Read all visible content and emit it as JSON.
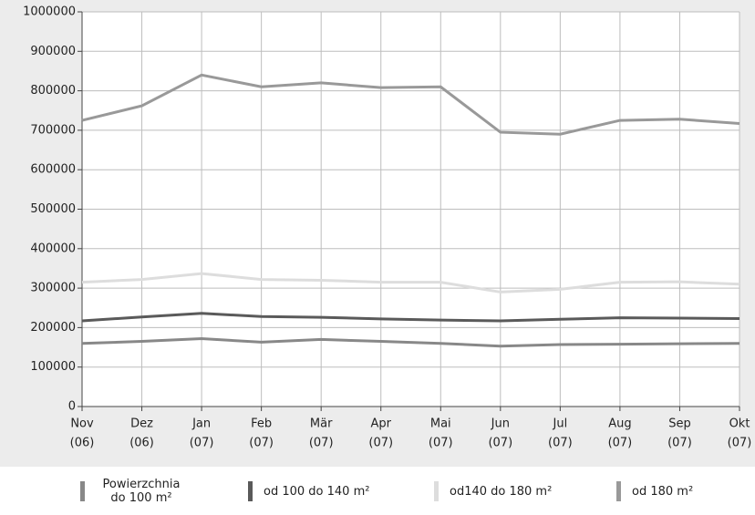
{
  "chart_data": {
    "type": "line",
    "categories": [
      [
        "Nov",
        "(06)"
      ],
      [
        "Dez",
        "(06)"
      ],
      [
        "Jan",
        "(07)"
      ],
      [
        "Feb",
        "(07)"
      ],
      [
        "Mär",
        "(07)"
      ],
      [
        "Apr",
        "(07)"
      ],
      [
        "Mai",
        "(07)"
      ],
      [
        "Jun",
        "(07)"
      ],
      [
        "Jul",
        "(07)"
      ],
      [
        "Aug",
        "(07)"
      ],
      [
        "Sep",
        "(07)"
      ],
      [
        "Okt",
        "(07)"
      ]
    ],
    "series": [
      {
        "name": "Powierzchnia do 100 m²",
        "color": "#888888",
        "values": [
          160000,
          165000,
          172000,
          163000,
          170000,
          165000,
          160000,
          153000,
          157000,
          158000,
          159000,
          160000
        ]
      },
      {
        "name": "od 100 do 140 m²",
        "color": "#5a5a5a",
        "values": [
          217000,
          227000,
          236000,
          228000,
          226000,
          222000,
          219000,
          217000,
          221000,
          225000,
          224000,
          223000
        ]
      },
      {
        "name": "od140 do 180 m²",
        "color": "#dddddd",
        "values": [
          315000,
          322000,
          337000,
          322000,
          320000,
          315000,
          315000,
          290000,
          297000,
          315000,
          316000,
          310000
        ]
      },
      {
        "name": "od 180 m²",
        "color": "#999999",
        "values": [
          725000,
          762000,
          840000,
          810000,
          820000,
          808000,
          810000,
          695000,
          690000,
          725000,
          728000,
          717000
        ]
      }
    ],
    "ylim": [
      0,
      1000000
    ],
    "yticks": [
      0,
      100000,
      200000,
      300000,
      400000,
      500000,
      600000,
      700000,
      800000,
      900000,
      1000000
    ],
    "grid": true
  }
}
